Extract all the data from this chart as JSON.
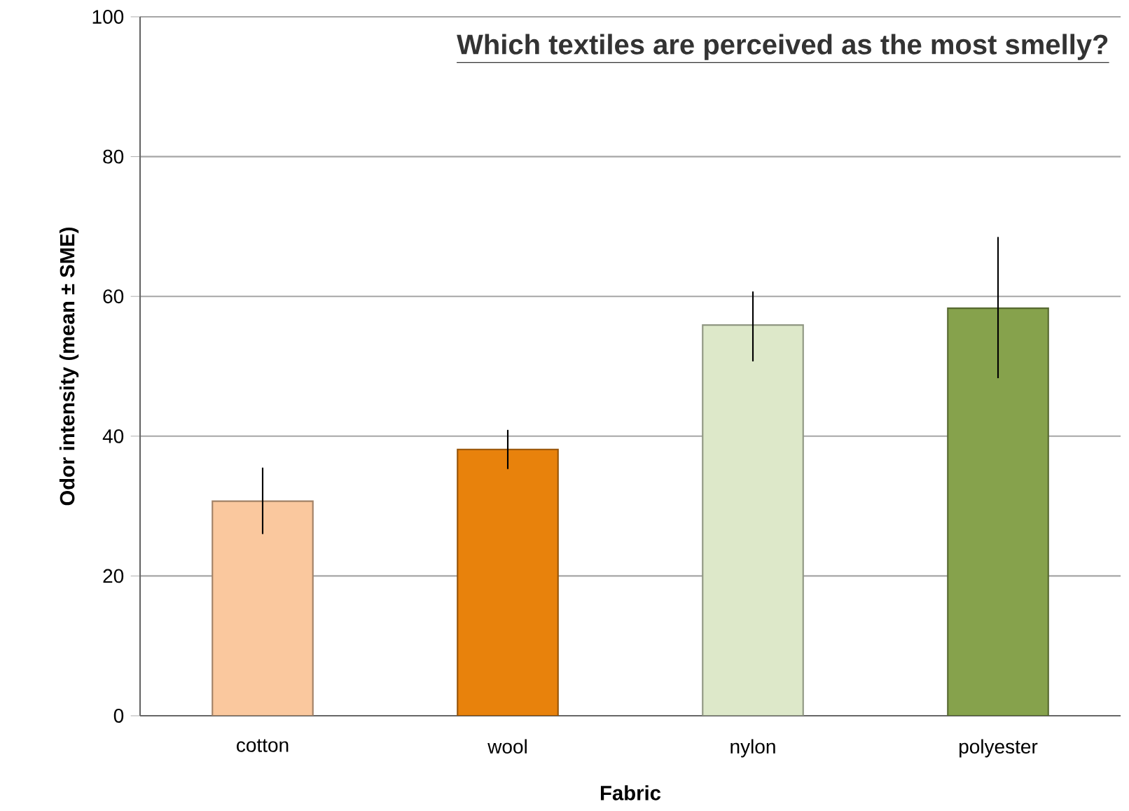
{
  "chart_data": {
    "type": "bar",
    "title": "Which textiles are perceived as the most smelly?",
    "xlabel": "Fabric",
    "ylabel": "Odor intensity (mean ± SME)",
    "categories": [
      "cotton",
      "wool",
      "nylon",
      "polyester"
    ],
    "values": [
      30.7,
      38.1,
      55.9,
      58.3
    ],
    "colors": [
      "#fac89e",
      "#e8820c",
      "#dde8c9",
      "#86a24c"
    ],
    "errors": [
      [
        26.0,
        35.5
      ],
      [
        35.3,
        40.9
      ],
      [
        50.7,
        60.7
      ],
      [
        48.3,
        68.5
      ]
    ],
    "ylim": [
      0,
      100
    ],
    "yticks": [
      0,
      20,
      40,
      60,
      80,
      100
    ],
    "grid": "y"
  }
}
